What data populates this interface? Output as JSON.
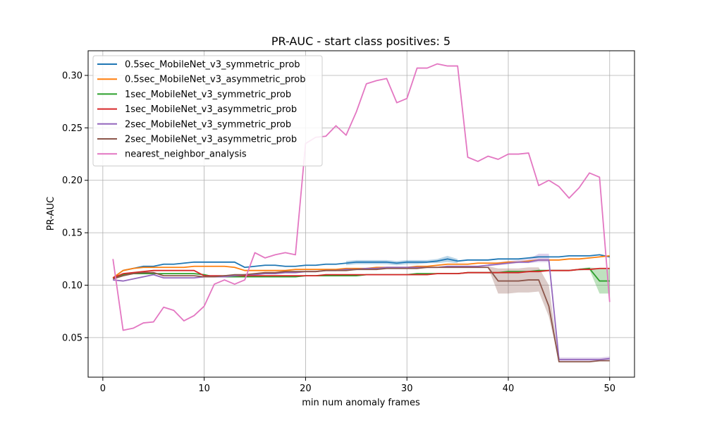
{
  "chart_data": {
    "type": "line",
    "title": "PR-AUC - start class positives: 5",
    "xlabel": "min num anomaly frames",
    "ylabel": "PR-AUC",
    "xlim": [
      -1.45,
      52.45
    ],
    "ylim": [
      0.0123,
      0.3235
    ],
    "xticks": [
      0,
      10,
      20,
      30,
      40,
      50
    ],
    "yticks": [
      0.05,
      0.1,
      0.15,
      0.2,
      0.25,
      0.3
    ],
    "ytick_labels": [
      "0.05",
      "0.10",
      "0.15",
      "0.20",
      "0.25",
      "0.30"
    ],
    "grid": true,
    "legend_position": "upper-left",
    "series": [
      {
        "name": "0.5sec_MobileNet_v3_symmetric_prob",
        "color": "#1f77b4",
        "x": [
          1,
          2,
          3,
          4,
          5,
          6,
          7,
          8,
          9,
          10,
          11,
          12,
          13,
          14,
          15,
          16,
          17,
          18,
          19,
          20,
          21,
          22,
          23,
          24,
          25,
          26,
          27,
          28,
          29,
          30,
          31,
          32,
          33,
          34,
          35,
          36,
          37,
          38,
          39,
          40,
          41,
          42,
          43,
          44,
          45,
          46,
          47,
          48,
          49,
          50
        ],
        "y": [
          0.107,
          0.114,
          0.116,
          0.118,
          0.118,
          0.12,
          0.12,
          0.121,
          0.122,
          0.122,
          0.122,
          0.122,
          0.122,
          0.117,
          0.118,
          0.119,
          0.119,
          0.118,
          0.118,
          0.119,
          0.119,
          0.12,
          0.12,
          0.121,
          0.122,
          0.122,
          0.122,
          0.122,
          0.121,
          0.122,
          0.122,
          0.122,
          0.123,
          0.125,
          0.123,
          0.124,
          0.124,
          0.124,
          0.125,
          0.125,
          0.125,
          0.126,
          0.127,
          0.127,
          0.127,
          0.128,
          0.128,
          0.128,
          0.129,
          0.127
        ],
        "band": 0.002
      },
      {
        "name": "0.5sec_MobileNet_v3_asymmetric_prob",
        "color": "#ff7f0e",
        "x": [
          1,
          2,
          3,
          4,
          5,
          6,
          7,
          8,
          9,
          10,
          11,
          12,
          13,
          14,
          15,
          16,
          17,
          18,
          19,
          20,
          21,
          22,
          23,
          24,
          25,
          26,
          27,
          28,
          29,
          30,
          31,
          32,
          33,
          34,
          35,
          36,
          37,
          38,
          39,
          40,
          41,
          42,
          43,
          44,
          45,
          46,
          47,
          48,
          49,
          50
        ],
        "y": [
          0.107,
          0.114,
          0.116,
          0.117,
          0.117,
          0.117,
          0.117,
          0.117,
          0.118,
          0.118,
          0.118,
          0.118,
          0.117,
          0.114,
          0.114,
          0.114,
          0.114,
          0.114,
          0.115,
          0.115,
          0.115,
          0.115,
          0.115,
          0.116,
          0.116,
          0.116,
          0.117,
          0.117,
          0.117,
          0.117,
          0.118,
          0.118,
          0.119,
          0.12,
          0.12,
          0.12,
          0.121,
          0.121,
          0.121,
          0.122,
          0.122,
          0.123,
          0.124,
          0.124,
          0.124,
          0.125,
          0.125,
          0.126,
          0.127,
          0.128
        ],
        "band": 0.001
      },
      {
        "name": "1sec_MobileNet_v3_symmetric_prob",
        "color": "#2ca02c",
        "x": [
          1,
          2,
          3,
          4,
          5,
          6,
          7,
          8,
          9,
          10,
          11,
          12,
          13,
          14,
          15,
          16,
          17,
          18,
          19,
          20,
          21,
          22,
          23,
          24,
          25,
          26,
          27,
          28,
          29,
          30,
          31,
          32,
          33,
          34,
          35,
          36,
          37,
          38,
          39,
          40,
          41,
          42,
          43,
          44,
          45,
          46,
          47,
          48,
          49,
          50
        ],
        "y": [
          0.107,
          0.11,
          0.111,
          0.111,
          0.111,
          0.111,
          0.111,
          0.111,
          0.111,
          0.11,
          0.108,
          0.108,
          0.108,
          0.108,
          0.108,
          0.108,
          0.108,
          0.108,
          0.108,
          0.109,
          0.109,
          0.109,
          0.109,
          0.109,
          0.109,
          0.11,
          0.11,
          0.11,
          0.11,
          0.11,
          0.111,
          0.111,
          0.111,
          0.111,
          0.111,
          0.112,
          0.112,
          0.112,
          0.112,
          0.113,
          0.113,
          0.113,
          0.114,
          0.114,
          0.114,
          0.114,
          0.115,
          0.116,
          0.104,
          0.104
        ],
        "band": 0.001
      },
      {
        "name": "1sec_MobileNet_v3_asymmetric_prob",
        "color": "#d62728",
        "x": [
          1,
          2,
          3,
          4,
          5,
          6,
          7,
          8,
          9,
          10,
          11,
          12,
          13,
          14,
          15,
          16,
          17,
          18,
          19,
          20,
          21,
          22,
          23,
          24,
          25,
          26,
          27,
          28,
          29,
          30,
          31,
          32,
          33,
          34,
          35,
          36,
          37,
          38,
          39,
          40,
          41,
          42,
          43,
          44,
          45,
          46,
          47,
          48,
          49,
          50
        ],
        "y": [
          0.107,
          0.111,
          0.112,
          0.113,
          0.114,
          0.114,
          0.114,
          0.114,
          0.114,
          0.109,
          0.109,
          0.109,
          0.109,
          0.109,
          0.109,
          0.109,
          0.109,
          0.109,
          0.109,
          0.109,
          0.109,
          0.11,
          0.11,
          0.11,
          0.11,
          0.11,
          0.11,
          0.11,
          0.11,
          0.11,
          0.11,
          0.11,
          0.111,
          0.111,
          0.111,
          0.112,
          0.112,
          0.112,
          0.112,
          0.112,
          0.112,
          0.113,
          0.113,
          0.114,
          0.114,
          0.114,
          0.115,
          0.115,
          0.116,
          0.116
        ],
        "band": 0.001
      },
      {
        "name": "2sec_MobileNet_v3_symmetric_prob",
        "color": "#9467bd",
        "x": [
          1,
          2,
          3,
          4,
          5,
          6,
          7,
          8,
          9,
          10,
          11,
          12,
          13,
          14,
          15,
          16,
          17,
          18,
          19,
          20,
          21,
          22,
          23,
          24,
          25,
          26,
          27,
          28,
          29,
          30,
          31,
          32,
          33,
          34,
          35,
          36,
          37,
          38,
          39,
          40,
          41,
          42,
          43,
          44,
          45,
          46,
          47,
          48,
          49,
          50
        ],
        "y": [
          0.105,
          0.104,
          0.106,
          0.108,
          0.11,
          0.107,
          0.107,
          0.107,
          0.107,
          0.108,
          0.108,
          0.108,
          0.109,
          0.11,
          0.11,
          0.111,
          0.111,
          0.112,
          0.112,
          0.113,
          0.113,
          0.114,
          0.114,
          0.115,
          0.115,
          0.116,
          0.116,
          0.117,
          0.117,
          0.117,
          0.117,
          0.117,
          0.117,
          0.118,
          0.118,
          0.118,
          0.118,
          0.119,
          0.12,
          0.121,
          0.122,
          0.122,
          0.124,
          0.124,
          0.029,
          0.029,
          0.029,
          0.029,
          0.029,
          0.03
        ],
        "band": 0.001
      },
      {
        "name": "2sec_MobileNet_v3_asymmetric_prob",
        "color": "#8c564b",
        "x": [
          1,
          2,
          3,
          4,
          5,
          6,
          7,
          8,
          9,
          10,
          11,
          12,
          13,
          14,
          15,
          16,
          17,
          18,
          19,
          20,
          21,
          22,
          23,
          24,
          25,
          26,
          27,
          28,
          29,
          30,
          31,
          32,
          33,
          34,
          35,
          36,
          37,
          38,
          39,
          40,
          41,
          42,
          43,
          44,
          45,
          46,
          47,
          48,
          49,
          50
        ],
        "y": [
          0.106,
          0.109,
          0.111,
          0.112,
          0.112,
          0.109,
          0.109,
          0.109,
          0.109,
          0.108,
          0.108,
          0.109,
          0.11,
          0.11,
          0.111,
          0.112,
          0.112,
          0.113,
          0.113,
          0.113,
          0.113,
          0.114,
          0.114,
          0.114,
          0.115,
          0.115,
          0.115,
          0.116,
          0.116,
          0.116,
          0.116,
          0.117,
          0.117,
          0.117,
          0.117,
          0.117,
          0.117,
          0.117,
          0.104,
          0.104,
          0.104,
          0.105,
          0.105,
          0.08,
          0.027,
          0.027,
          0.027,
          0.027,
          0.028,
          0.028
        ],
        "band": 0.001
      },
      {
        "name": "nearest_neighbor_analysis",
        "color": "#e377c2",
        "x": [
          1,
          2,
          3,
          4,
          5,
          6,
          7,
          8,
          9,
          10,
          11,
          12,
          13,
          14,
          15,
          16,
          17,
          18,
          19,
          20,
          21,
          22,
          23,
          24,
          25,
          26,
          27,
          28,
          29,
          30,
          31,
          32,
          33,
          34,
          35,
          36,
          37,
          38,
          39,
          40,
          41,
          42,
          43,
          44,
          45,
          46,
          47,
          48,
          49,
          50
        ],
        "y": [
          0.125,
          0.057,
          0.059,
          0.064,
          0.065,
          0.079,
          0.076,
          0.066,
          0.071,
          0.08,
          0.101,
          0.105,
          0.101,
          0.105,
          0.131,
          0.126,
          0.129,
          0.131,
          0.129,
          0.235,
          0.241,
          0.242,
          0.252,
          0.243,
          0.265,
          0.292,
          0.295,
          0.297,
          0.274,
          0.278,
          0.307,
          0.307,
          0.311,
          0.309,
          0.309,
          0.222,
          0.218,
          0.223,
          0.22,
          0.225,
          0.225,
          0.226,
          0.195,
          0.2,
          0.194,
          0.183,
          0.193,
          0.207,
          0.203,
          0.084
        ]
      }
    ],
    "bands": [
      {
        "series": "0.5sec_MobileNet_v3_symmetric_prob",
        "x": [
          24,
          25,
          26,
          27,
          28,
          29,
          30,
          31,
          32,
          33,
          34,
          35
        ],
        "lo": [
          0.119,
          0.12,
          0.12,
          0.12,
          0.12,
          0.119,
          0.12,
          0.12,
          0.121,
          0.121,
          0.122,
          0.121
        ],
        "hi": [
          0.123,
          0.124,
          0.124,
          0.124,
          0.124,
          0.123,
          0.124,
          0.124,
          0.124,
          0.125,
          0.128,
          0.125
        ]
      },
      {
        "series": "2sec_MobileNet_v3_asymmetric_prob",
        "x": [
          38,
          39,
          40,
          41,
          42,
          43,
          44,
          45
        ],
        "lo": [
          0.117,
          0.092,
          0.092,
          0.093,
          0.093,
          0.094,
          0.07,
          0.027
        ],
        "hi": [
          0.118,
          0.116,
          0.116,
          0.116,
          0.117,
          0.117,
          0.1,
          0.028
        ]
      },
      {
        "series": "2sec_MobileNet_v3_symmetric_prob",
        "x": [
          38,
          39,
          40,
          41,
          42,
          43,
          44,
          45,
          46,
          47,
          48,
          49,
          50
        ],
        "lo": [
          0.118,
          0.119,
          0.12,
          0.121,
          0.121,
          0.122,
          0.122,
          0.028,
          0.028,
          0.028,
          0.028,
          0.028,
          0.029
        ],
        "hi": [
          0.12,
          0.122,
          0.123,
          0.124,
          0.125,
          0.13,
          0.13,
          0.031,
          0.031,
          0.031,
          0.031,
          0.031,
          0.032
        ]
      },
      {
        "series": "1sec_MobileNet_v3_symmetric_prob",
        "x": [
          47,
          48,
          49,
          50
        ],
        "lo": [
          0.114,
          0.115,
          0.092,
          0.092
        ],
        "hi": [
          0.116,
          0.117,
          0.116,
          0.116
        ]
      }
    ]
  }
}
